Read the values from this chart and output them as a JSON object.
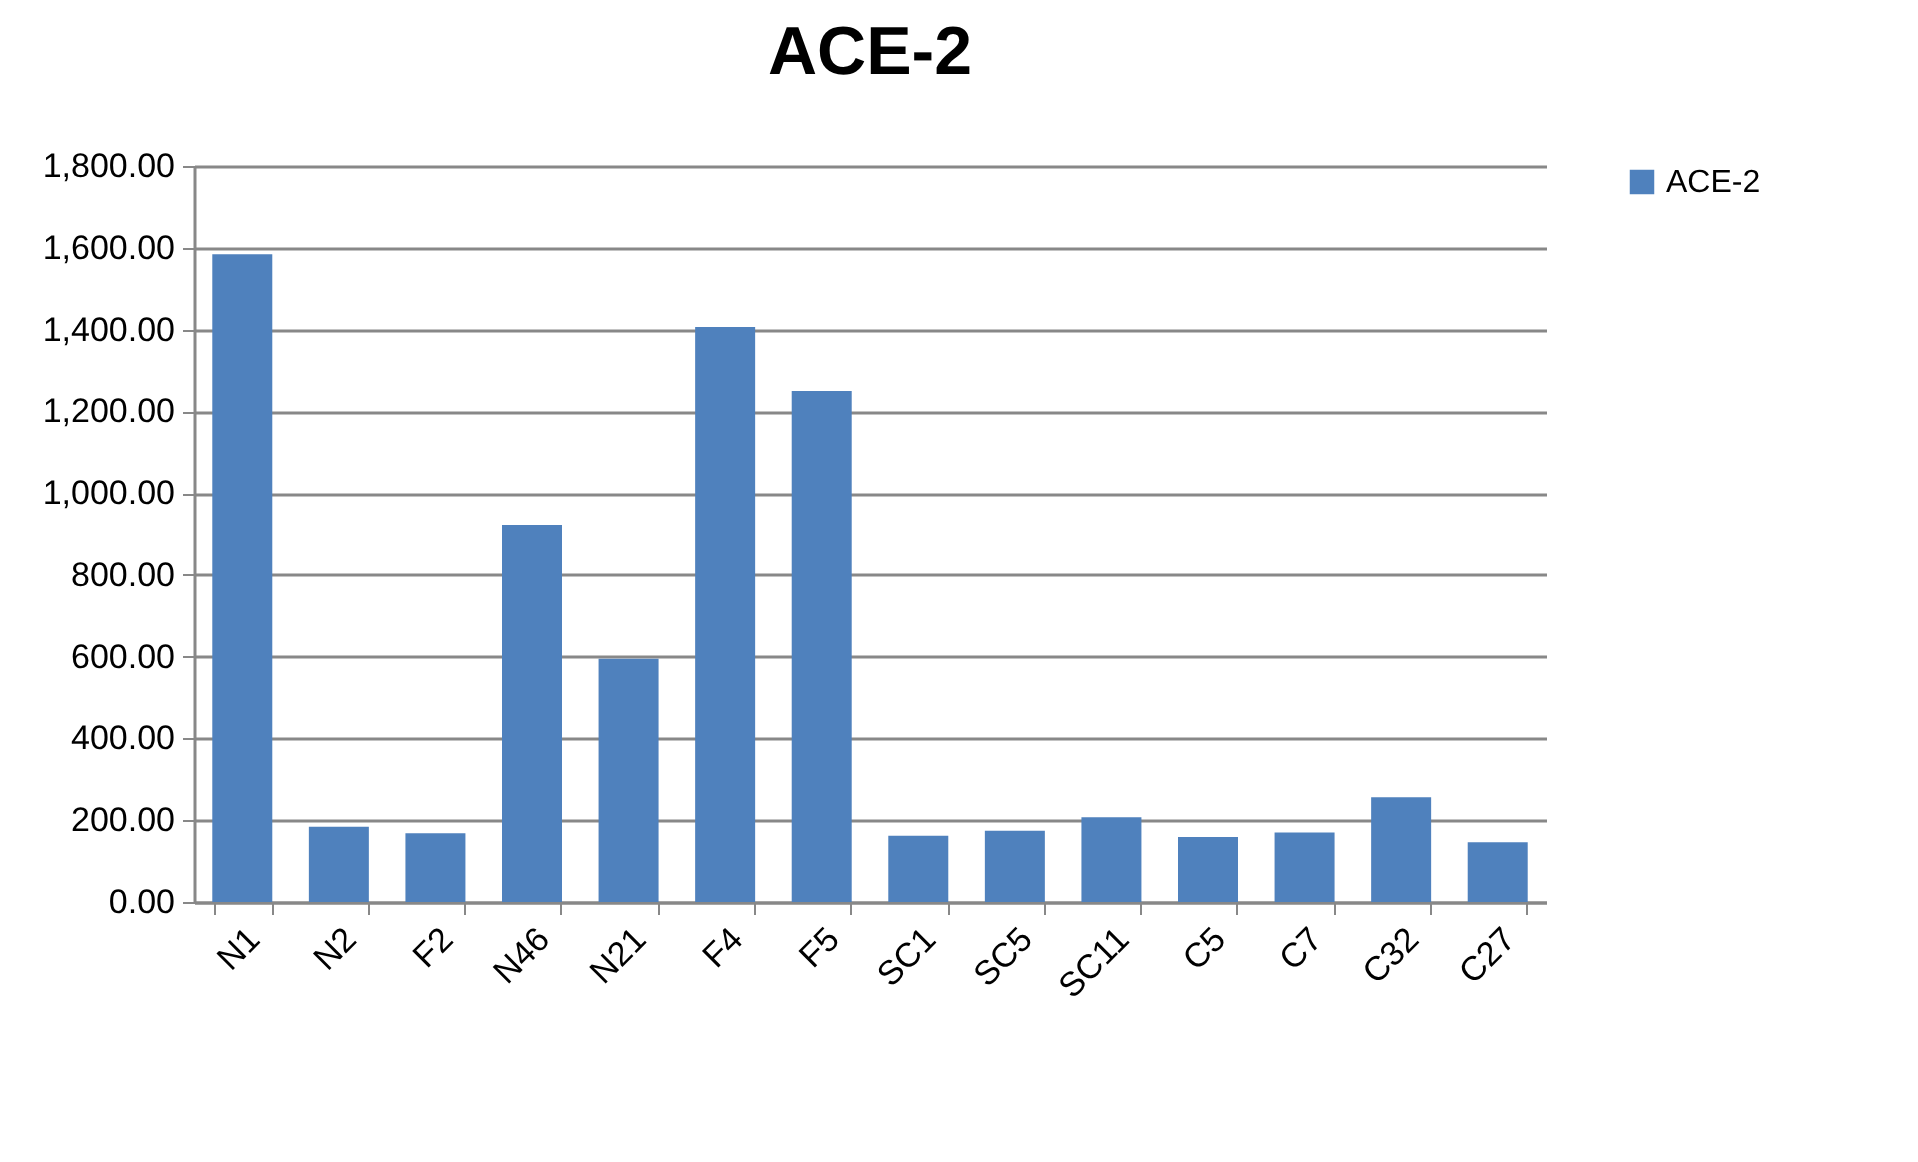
{
  "chart_data": {
    "type": "bar",
    "title": "ACE-2",
    "categories": [
      "N1",
      "N2",
      "F2",
      "N46",
      "N21",
      "F4",
      "F5",
      "SC1",
      "SC5",
      "SC11",
      "C5",
      "C7",
      "C32",
      "C27"
    ],
    "series": [
      {
        "name": "ACE-2",
        "color": "#4f81bd",
        "values": [
          1584,
          184,
          168,
          922,
          595,
          1406,
          1250,
          162,
          174,
          207,
          159,
          170,
          256,
          146
        ]
      }
    ],
    "ylim": [
      0,
      1800
    ],
    "yticks": [
      {
        "value": 0,
        "label": "0.00"
      },
      {
        "value": 200,
        "label": "200.00"
      },
      {
        "value": 400,
        "label": "400.00"
      },
      {
        "value": 600,
        "label": "600.00"
      },
      {
        "value": 800,
        "label": "800.00"
      },
      {
        "value": 1000,
        "label": "1,000.00"
      },
      {
        "value": 1200,
        "label": "1,200.00"
      },
      {
        "value": 1400,
        "label": "1,400.00"
      },
      {
        "value": 1600,
        "label": "1,600.00"
      },
      {
        "value": 1800,
        "label": "1,800.00"
      }
    ],
    "grid": "y",
    "legend": "right"
  }
}
